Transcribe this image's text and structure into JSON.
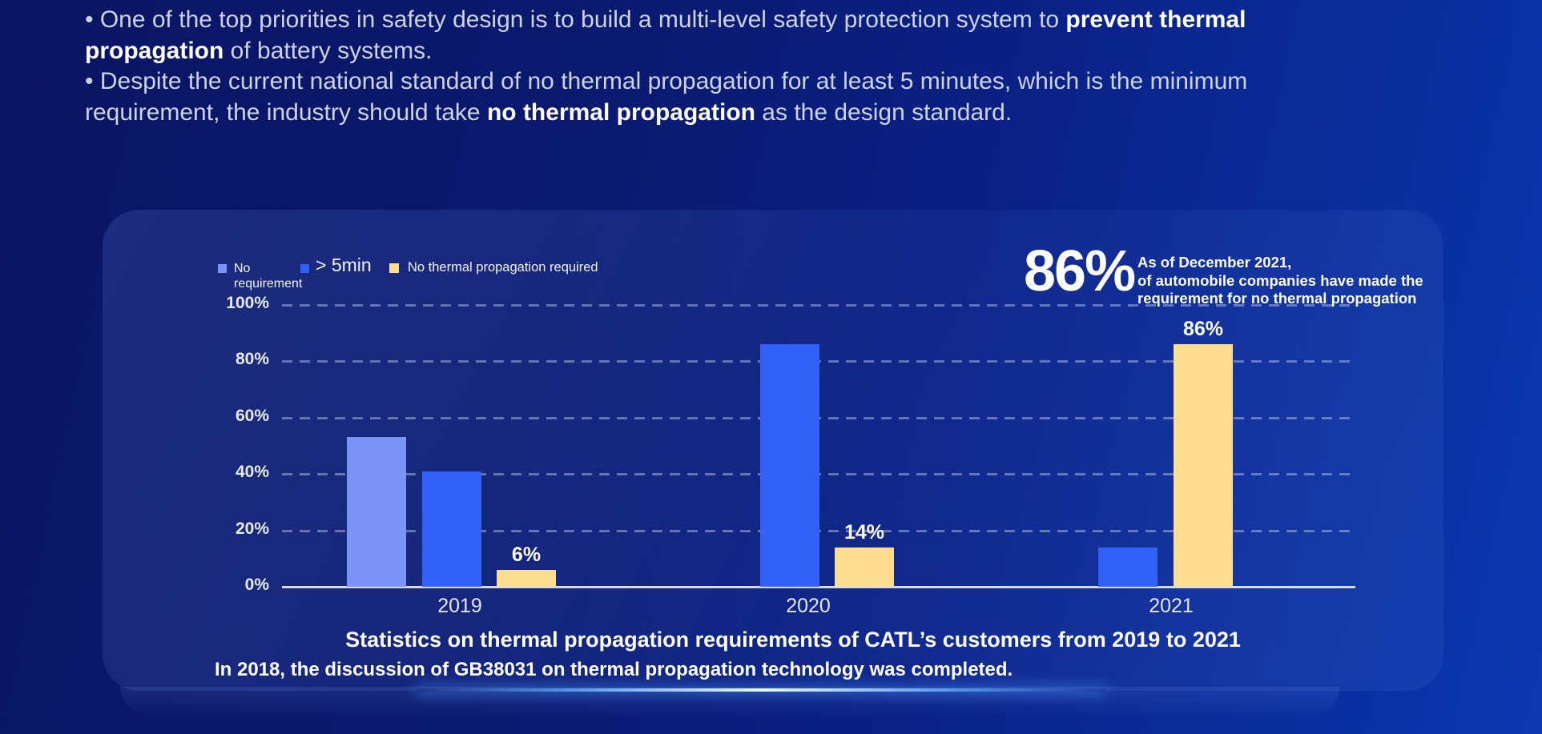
{
  "colors": {
    "background_left": "#0a1462",
    "background_right": "#0b38b0",
    "glow_accent": "#bfe4ff",
    "text_body": "#ccd3e3",
    "text_emphasis": "#ffffff"
  },
  "bullets": {
    "items": [
      {
        "segments": [
          {
            "text": "• One of the top priorities in safety design is to build a multi-level safety protection system to ",
            "bold": false
          },
          {
            "text": "prevent thermal propagation",
            "bold": true
          },
          {
            "text": " of battery systems.",
            "bold": false
          }
        ]
      },
      {
        "segments": [
          {
            "text": "• Despite the current national standard of no thermal propagation for at least 5 minutes, which is the minimum requirement, the industry should take ",
            "bold": false
          },
          {
            "text": "no thermal propagation",
            "bold": true
          },
          {
            "text": " as the design standard.",
            "bold": false
          }
        ]
      }
    ]
  },
  "panel": {
    "stat": {
      "value": "86%",
      "description": "As of December 2021,\nof automobile companies have made the\nrequirement for no thermal propagation"
    },
    "title": "Statistics on thermal propagation requirements of CATL’s customers from 2019 to 2021",
    "footnote": "In 2018, the discussion of GB38031 on thermal propagation technology was completed."
  },
  "chart_data": {
    "type": "bar",
    "categories": [
      "2019",
      "2020",
      "2021"
    ],
    "series": [
      {
        "name": "No requirement",
        "color": "#7b93f7",
        "values": [
          53,
          0,
          0
        ]
      },
      {
        "name": "> 5min",
        "color": "#3161f6",
        "values": [
          41,
          86,
          14
        ]
      },
      {
        "name": "No thermal propagation required",
        "color": "#fedd90",
        "values": [
          6,
          14,
          86
        ],
        "value_labels": [
          "6%",
          "14%",
          "86%"
        ]
      }
    ],
    "y_ticks": [
      "0%",
      "20%",
      "40%",
      "60%",
      "80%",
      "100%"
    ],
    "ylim": [
      0,
      100
    ],
    "grid": "dashed horizontal",
    "legend_position": "top-left"
  }
}
